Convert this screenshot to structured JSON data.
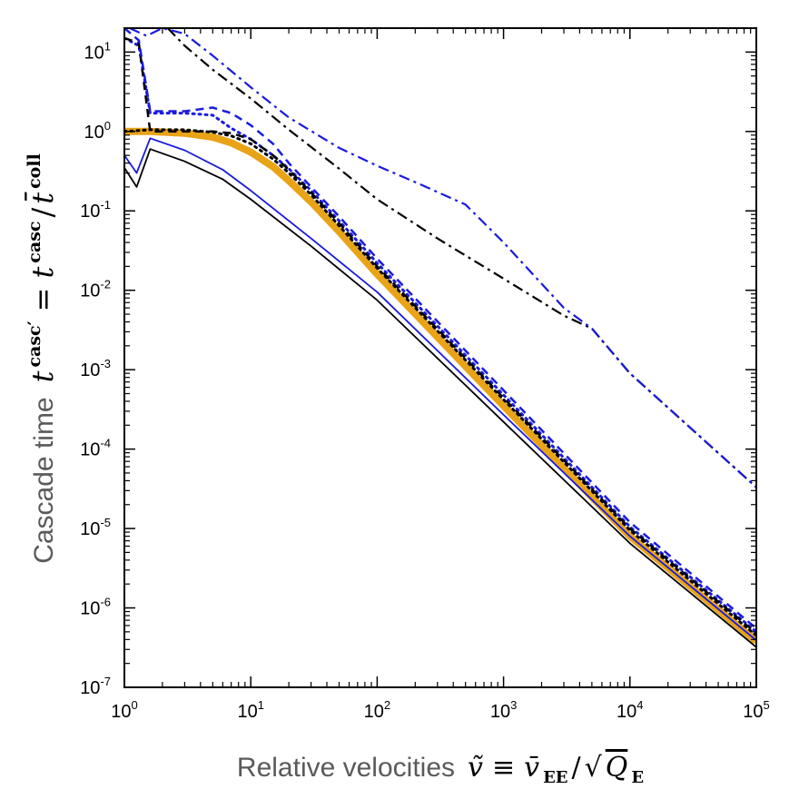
{
  "chart_data": {
    "type": "line",
    "xscale": "log",
    "yscale": "log",
    "xlim": [
      1,
      100000
    ],
    "ylim": [
      1e-07,
      20
    ],
    "xticks": [
      {
        "base": "10",
        "exp": "0",
        "value": 1
      },
      {
        "base": "10",
        "exp": "1",
        "value": 10
      },
      {
        "base": "10",
        "exp": "2",
        "value": 100
      },
      {
        "base": "10",
        "exp": "3",
        "value": 1000
      },
      {
        "base": "10",
        "exp": "4",
        "value": 10000
      },
      {
        "base": "10",
        "exp": "5",
        "value": 100000
      }
    ],
    "yticks": [
      {
        "base": "10",
        "exp": "-7",
        "value": 1e-07
      },
      {
        "base": "10",
        "exp": "-6",
        "value": 1e-06
      },
      {
        "base": "10",
        "exp": "-5",
        "value": 1e-05
      },
      {
        "base": "10",
        "exp": "-4",
        "value": 0.0001
      },
      {
        "base": "10",
        "exp": "-3",
        "value": 0.001
      },
      {
        "base": "10",
        "exp": "-2",
        "value": 0.01
      },
      {
        "base": "10",
        "exp": "-1",
        "value": 0.1
      },
      {
        "base": "10",
        "exp": "0",
        "value": 1
      },
      {
        "base": "10",
        "exp": "1",
        "value": 10
      }
    ],
    "xlabel": {
      "text": "Relative velocities",
      "math_lhs": "ṽ",
      "math_op": "≡",
      "math_v": "v̄",
      "math_v_sub": "EE",
      "math_slash": "/",
      "math_sqrt": "√",
      "math_Q": "Q",
      "math_Q_sub": "E"
    },
    "ylabel": {
      "text": "Cascade time",
      "math_t": "t",
      "math_t_sup": "casc′",
      "math_eq": "=",
      "math_t2_sup": "casc",
      "math_slash": "/",
      "math_tbar": "t̄",
      "math_tbar_sup": "coll"
    },
    "series": [
      {
        "name": "orange-thick",
        "color": "#e8a317",
        "dash": "solid",
        "width": 8,
        "x": [
          1,
          1.6,
          3,
          5,
          7,
          10,
          15,
          20,
          30,
          50,
          100,
          1000,
          10000,
          100000
        ],
        "y": [
          1.0,
          1.0,
          0.95,
          0.85,
          0.72,
          0.55,
          0.36,
          0.24,
          0.13,
          0.055,
          0.016,
          0.00035,
          8e-06,
          3.8e-07
        ]
      },
      {
        "name": "black-dotted",
        "color": "#000000",
        "dash": "dotted",
        "width": 3,
        "x": [
          1,
          1.6,
          3,
          5,
          7,
          10,
          15,
          20,
          30,
          50,
          100,
          1000,
          10000,
          100000
        ],
        "y": [
          1.0,
          1.05,
          1.05,
          0.98,
          0.88,
          0.7,
          0.45,
          0.3,
          0.16,
          0.065,
          0.019,
          0.00042,
          9.5e-06,
          4.5e-07
        ]
      },
      {
        "name": "blue-dotted",
        "color": "#1a1adf",
        "dash": "dotted",
        "width": 3,
        "x": [
          1,
          1.3,
          1.6,
          3,
          5,
          7,
          10,
          15,
          20,
          30,
          50,
          100,
          1000,
          10000,
          100000
        ],
        "y": [
          15,
          12,
          1.7,
          1.7,
          1.6,
          1.1,
          0.8,
          0.5,
          0.34,
          0.18,
          0.075,
          0.022,
          0.00048,
          1.05e-05,
          5e-07
        ]
      },
      {
        "name": "black-dashed",
        "color": "#000000",
        "dash": "dashed",
        "width": 2.5,
        "x": [
          1,
          1.3,
          1.6,
          3,
          5,
          7,
          10,
          15,
          20,
          30,
          50,
          100,
          1000,
          10000,
          100000
        ],
        "y": [
          15,
          13,
          1.0,
          1.0,
          1.0,
          0.95,
          0.8,
          0.5,
          0.33,
          0.17,
          0.07,
          0.02,
          0.00044,
          1e-05,
          4.8e-07
        ]
      },
      {
        "name": "blue-dashed",
        "color": "#1a1adf",
        "dash": "dashed",
        "width": 2.5,
        "x": [
          1,
          1.3,
          1.6,
          3,
          5,
          7,
          10,
          15,
          20,
          30,
          50,
          100,
          1000,
          10000,
          100000
        ],
        "y": [
          20,
          14,
          1.8,
          1.8,
          2.0,
          1.7,
          1.2,
          0.7,
          0.4,
          0.2,
          0.085,
          0.025,
          0.00055,
          1.2e-05,
          5.5e-07
        ]
      },
      {
        "name": "black-thin",
        "color": "#000000",
        "dash": "solid",
        "width": 1.8,
        "x": [
          1,
          1.25,
          1.6,
          3,
          6,
          10,
          30,
          100,
          1000,
          10000,
          100000
        ],
        "y": [
          0.35,
          0.2,
          0.6,
          0.42,
          0.25,
          0.14,
          0.036,
          0.0075,
          0.00022,
          6.5e-06,
          3.2e-07
        ]
      },
      {
        "name": "blue-thin",
        "color": "#1a1adf",
        "dash": "solid",
        "width": 1.8,
        "x": [
          1,
          1.25,
          1.6,
          3,
          6,
          10,
          30,
          100,
          1000,
          10000,
          100000
        ],
        "y": [
          0.5,
          0.3,
          0.82,
          0.58,
          0.33,
          0.18,
          0.045,
          0.0095,
          0.00027,
          8e-06,
          3.9e-07
        ]
      },
      {
        "name": "black-dashdot",
        "color": "#000000",
        "dash": "dashdot",
        "width": 2.2,
        "x": [
          2.2,
          3,
          5,
          10,
          20,
          50,
          100,
          300,
          1000,
          3000,
          5000,
          10000,
          100000
        ],
        "y": [
          20,
          12,
          6,
          2.6,
          1.05,
          0.34,
          0.14,
          0.045,
          0.014,
          0.0048,
          0.0033,
          0.0009,
          3.3e-05
        ]
      },
      {
        "name": "blue-dashdot",
        "color": "#1a1adf",
        "dash": "dashdot",
        "width": 2.2,
        "x": [
          1.1,
          1.5,
          2,
          3,
          5,
          10,
          20,
          50,
          100,
          200,
          500,
          1000,
          3000,
          5000,
          10000,
          100000
        ],
        "y": [
          20,
          16,
          20,
          17,
          9,
          3.6,
          1.5,
          0.62,
          0.37,
          0.23,
          0.12,
          0.04,
          0.006,
          0.0033,
          0.0009,
          3.3e-05
        ]
      }
    ]
  }
}
